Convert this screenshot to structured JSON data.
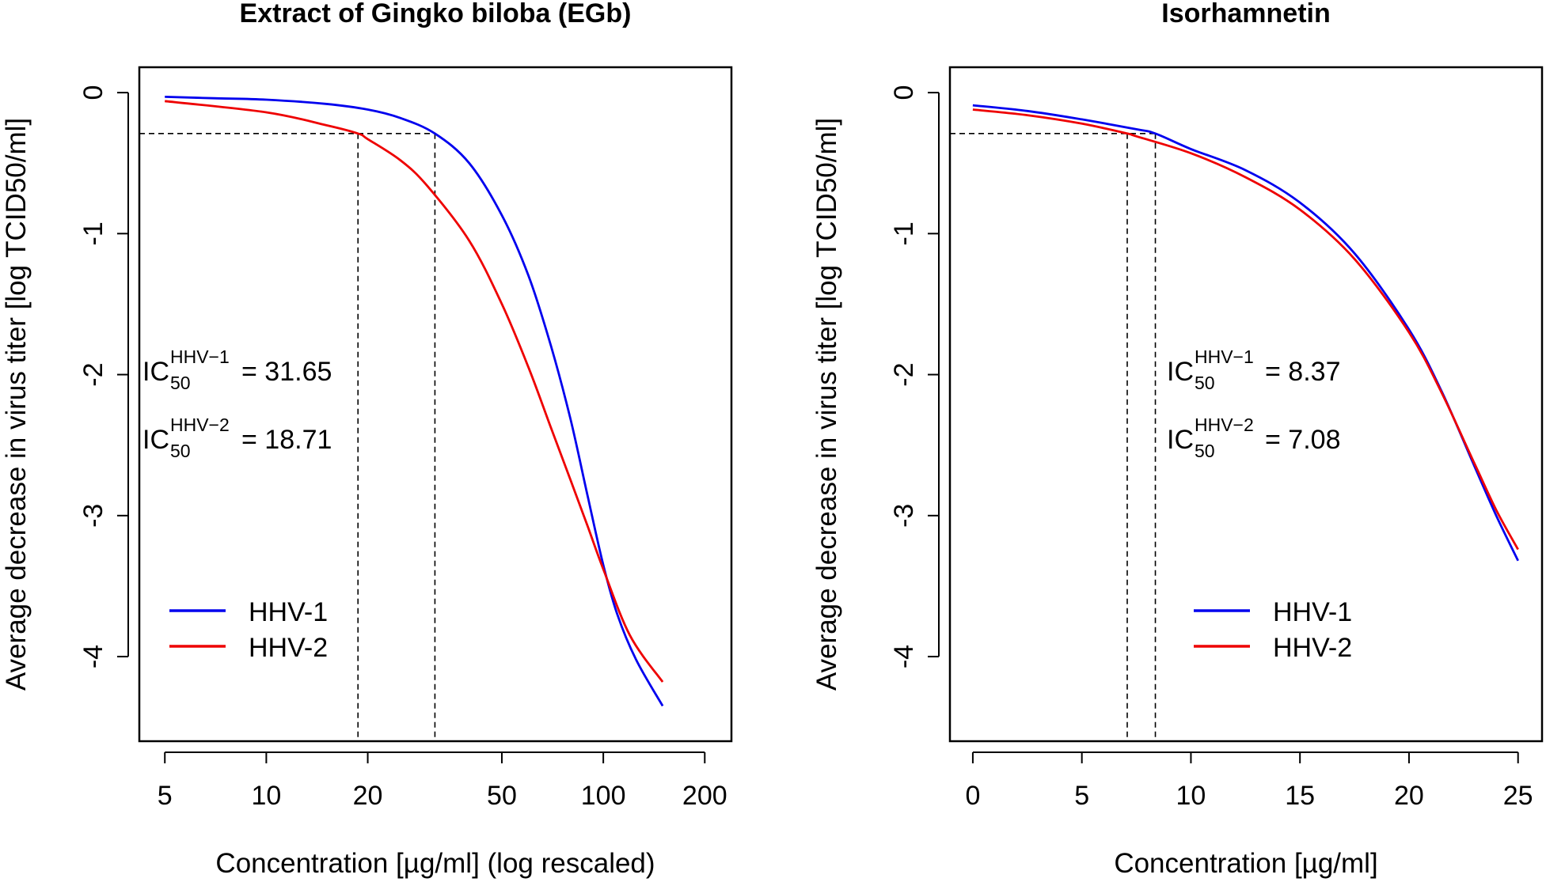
{
  "chart_data": [
    {
      "type": "line",
      "title": "Extract of Gingko biloba (EGb)",
      "xlabel": "Concentration [µg/ml] (log rescaled)",
      "ylabel": "Average decrease in virus titer [log TCID50/ml]",
      "xscale": "log",
      "xlim": [
        4.2,
        240
      ],
      "ylim": [
        -4.6,
        0.18
      ],
      "xticks": [
        5,
        10,
        20,
        50,
        100,
        200
      ],
      "yticks": [
        0,
        -1,
        -2,
        -3,
        -4
      ],
      "reference_level": -0.29,
      "ic50_markers": [
        18.71,
        31.65
      ],
      "annotations": [
        {
          "prefix": "IC",
          "sub": "50",
          "sup": "HHV−1",
          "value": "= 31.65"
        },
        {
          "prefix": "IC",
          "sub": "50",
          "sup": "HHV−2",
          "value": "= 18.71"
        }
      ],
      "legend": {
        "position": "bottom-left",
        "entries": [
          "HHV-1",
          "HHV-2"
        ]
      },
      "series": [
        {
          "name": "HHV-1",
          "color": "#0000ee",
          "x": [
            5,
            7,
            10,
            15,
            20,
            25,
            31.65,
            40,
            50,
            60,
            70,
            80,
            90,
            100,
            110,
            125,
            150
          ],
          "y": [
            -0.03,
            -0.04,
            -0.05,
            -0.08,
            -0.12,
            -0.18,
            -0.29,
            -0.5,
            -0.87,
            -1.3,
            -1.8,
            -2.32,
            -2.87,
            -3.35,
            -3.7,
            -4.02,
            -4.35
          ]
        },
        {
          "name": "HHV-2",
          "color": "#ee0000",
          "x": [
            5,
            10,
            15,
            18.71,
            20,
            25,
            30,
            40,
            50,
            60,
            70,
            80,
            90,
            100,
            120,
            150
          ],
          "y": [
            -0.06,
            -0.14,
            -0.23,
            -0.29,
            -0.33,
            -0.48,
            -0.66,
            -1.05,
            -1.5,
            -1.95,
            -2.38,
            -2.75,
            -3.08,
            -3.38,
            -3.85,
            -4.18
          ]
        }
      ]
    },
    {
      "type": "line",
      "title": "Isorhamnetin",
      "xlabel": "Concentration [µg/ml]",
      "ylabel": "Average decrease in virus titer [log TCID50/ml]",
      "xscale": "linear",
      "xlim": [
        -1.05,
        26.1
      ],
      "ylim": [
        -4.6,
        0.18
      ],
      "xticks": [
        0,
        5,
        10,
        15,
        20,
        25
      ],
      "yticks": [
        0,
        -1,
        -2,
        -3,
        -4
      ],
      "reference_level": -0.29,
      "ic50_markers": [
        7.08,
        8.37
      ],
      "annotations": [
        {
          "prefix": "IC",
          "sub": "50",
          "sup": "HHV−1",
          "value": "= 8.37"
        },
        {
          "prefix": "IC",
          "sub": "50",
          "sup": "HHV−2",
          "value": "= 7.08"
        }
      ],
      "legend": {
        "position": "bottom-right",
        "entries": [
          "HHV-1",
          "HHV-2"
        ]
      },
      "series": [
        {
          "name": "HHV-1",
          "color": "#0000ee",
          "x": [
            0,
            2.5,
            5,
            7.5,
            8.37,
            10,
            12.5,
            15,
            17.5,
            20,
            21.5,
            23,
            24,
            25
          ],
          "y": [
            -0.09,
            -0.13,
            -0.19,
            -0.26,
            -0.29,
            -0.4,
            -0.55,
            -0.78,
            -1.14,
            -1.68,
            -2.12,
            -2.65,
            -3.0,
            -3.32
          ]
        },
        {
          "name": "HHV-2",
          "color": "#ee0000",
          "x": [
            0,
            2.5,
            5,
            7.08,
            7.5,
            10,
            12.5,
            15,
            17.5,
            20,
            21.5,
            23,
            24,
            25
          ],
          "y": [
            -0.12,
            -0.16,
            -0.22,
            -0.29,
            -0.31,
            -0.43,
            -0.6,
            -0.83,
            -1.18,
            -1.7,
            -2.13,
            -2.63,
            -2.96,
            -3.24
          ]
        }
      ]
    }
  ]
}
